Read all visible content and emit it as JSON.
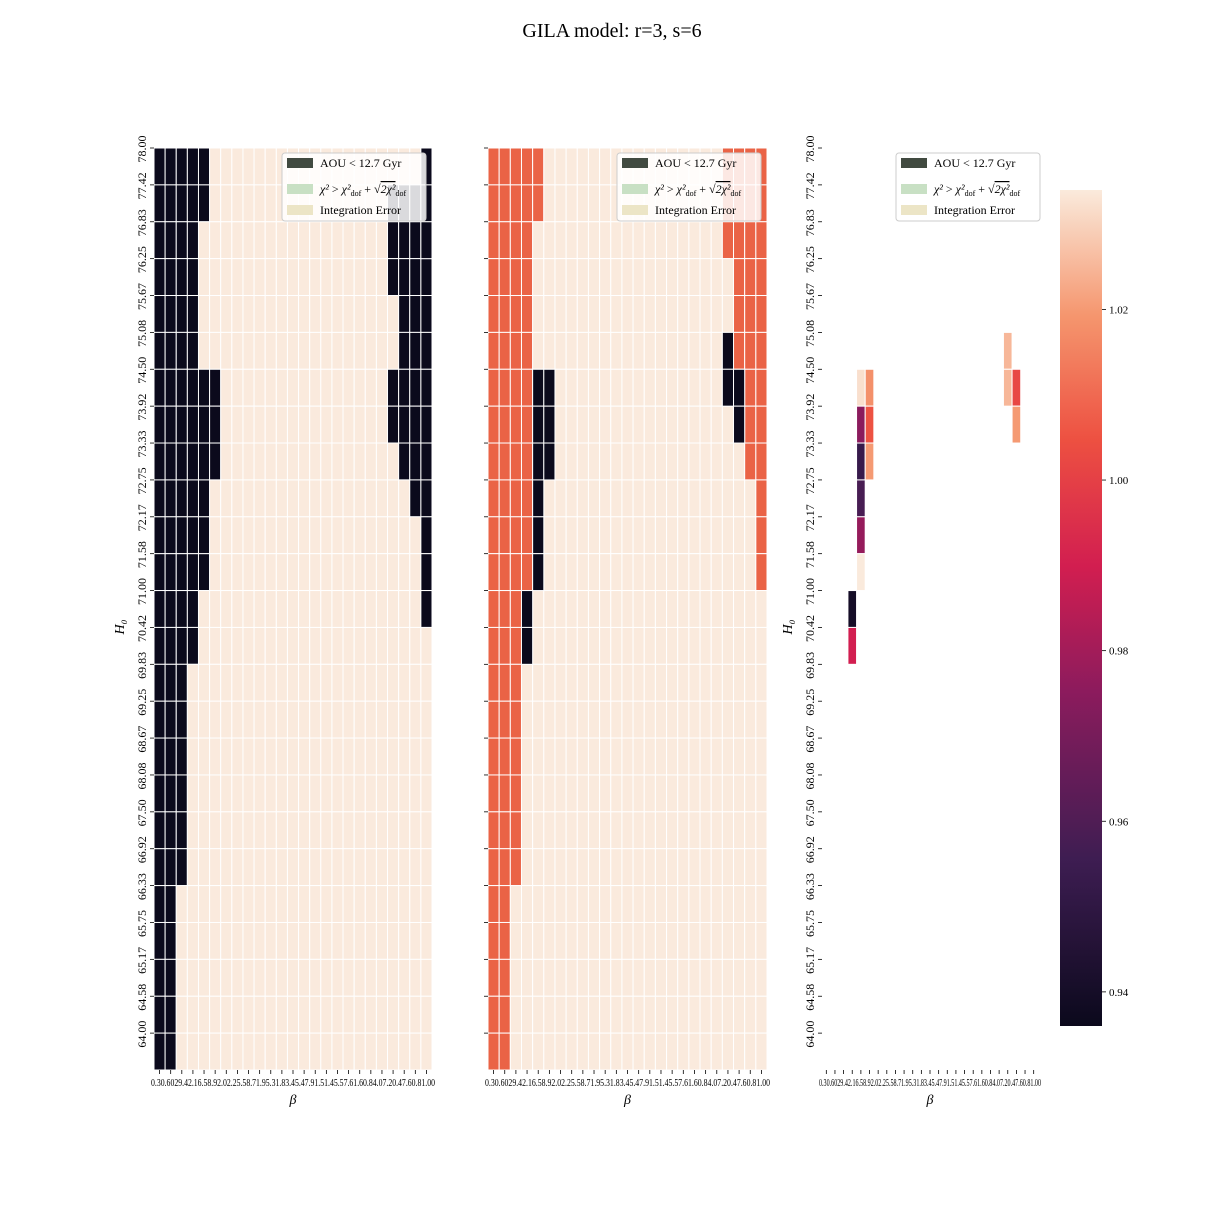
{
  "title": "GILA model: r=3, s=6",
  "colors": {
    "background_cell": "#faeadd",
    "cell_gap": "#ffffff",
    "aou": "#0b0a1c",
    "chi2": "#ea6346",
    "legend_aou": "#414a40",
    "legend_chi2": "#c8e0c4",
    "legend_integration": "#ece5c6"
  },
  "legend": {
    "aou": "AOU < 12.7 Gyr",
    "chi2_prefix": "χ²",
    "chi2_gt": " > ",
    "chi2_mid": "χ²",
    "chi2_sub": "dof",
    "chi2_plus": " + ",
    "chi2_root": "√",
    "chi2_root_arg": "2χ²",
    "integration": "Integration Error"
  },
  "chart_data": [
    {
      "type": "heatmap",
      "panel": "left",
      "xlabel": "β",
      "ylabel": "H₀",
      "y_ticks": [
        "78.00",
        "77.42",
        "76.83",
        "76.25",
        "75.67",
        "75.08",
        "74.50",
        "73.92",
        "73.33",
        "72.75",
        "72.17",
        "71.58",
        "71.00",
        "70.42",
        "69.83",
        "69.25",
        "68.67",
        "68.08",
        "67.50",
        "66.92",
        "66.33",
        "65.75",
        "65.17",
        "64.58",
        "64.00"
      ],
      "x_tick_text": "0.30.6029.42.16.58.92.02.25.58.71.95.31.83.45.47.91.51.45.57.61.60.84.07.20.47.60.81.00",
      "n_cols": 25,
      "n_rows": 25,
      "aou_left_cols_per_row": [
        5,
        5,
        4,
        4,
        4,
        4,
        6,
        6,
        6,
        5,
        5,
        5,
        4,
        4,
        3,
        3,
        3,
        3,
        3,
        3,
        2,
        2,
        2,
        2,
        2
      ],
      "aou_right_start_col_per_row": [
        25,
        21,
        21,
        21,
        22,
        22,
        21,
        21,
        22,
        23,
        24,
        24,
        24,
        26,
        26,
        26,
        26,
        26,
        26,
        26,
        26,
        26,
        26,
        26,
        26
      ],
      "aou_right_cells_extra": [
        [
          0,
          24
        ],
        [
          1,
          24
        ],
        [
          2,
          24
        ]
      ],
      "legend_position": "upper right"
    },
    {
      "type": "heatmap",
      "panel": "middle",
      "xlabel": "β",
      "y_ticks": [],
      "x_tick_text": "0.30.6029.42.16.58.92.02.25.58.71.95.31.83.45.47.91.51.45.57.61.60.84.07.20.47.60.81.00",
      "n_cols": 25,
      "n_rows": 25,
      "chi2_left_cols_per_row": [
        5,
        5,
        4,
        4,
        4,
        4,
        4,
        4,
        4,
        4,
        4,
        4,
        3,
        3,
        3,
        3,
        3,
        3,
        3,
        3,
        2,
        2,
        2,
        2,
        2
      ],
      "aou_cells": [
        [
          6,
          4
        ],
        [
          6,
          5
        ],
        [
          7,
          4
        ],
        [
          7,
          5
        ],
        [
          8,
          4
        ],
        [
          8,
          5
        ],
        [
          9,
          4
        ],
        [
          10,
          4
        ],
        [
          11,
          4
        ],
        [
          12,
          3
        ],
        [
          13,
          3
        ],
        [
          5,
          21
        ],
        [
          6,
          21
        ],
        [
          6,
          22
        ],
        [
          7,
          22
        ]
      ],
      "chi2_right_start_col_per_row": [
        21,
        21,
        21,
        22,
        22,
        22,
        22,
        23,
        23,
        24,
        24,
        24,
        26,
        26,
        26,
        26,
        26,
        26,
        26,
        26,
        26,
        26,
        26,
        26,
        26
      ],
      "legend_position": "upper right"
    },
    {
      "type": "heatmap",
      "panel": "right",
      "xlabel": "β",
      "ylabel": "H₀",
      "y_ticks": [
        "78.00",
        "77.42",
        "76.83",
        "76.25",
        "75.67",
        "75.08",
        "74.50",
        "73.92",
        "73.33",
        "72.75",
        "72.17",
        "71.58",
        "71.00",
        "70.42",
        "69.83",
        "69.25",
        "68.67",
        "68.08",
        "67.50",
        "66.92",
        "66.33",
        "65.75",
        "65.17",
        "64.58",
        "64.00"
      ],
      "x_tick_text": "0.30.6029.42.16.58.92.02.25.58.71.95.31.83.45.47.91.51.45.57.61.60.84.07.20.47.60.81.00",
      "cells": [
        {
          "row": 6,
          "col": 4,
          "value": 1.032
        },
        {
          "row": 6,
          "col": 5,
          "value": 1.018
        },
        {
          "row": 7,
          "col": 4,
          "value": 0.975
        },
        {
          "row": 7,
          "col": 5,
          "value": 1.005
        },
        {
          "row": 8,
          "col": 4,
          "value": 0.953
        },
        {
          "row": 8,
          "col": 5,
          "value": 1.02
        },
        {
          "row": 9,
          "col": 4,
          "value": 0.958
        },
        {
          "row": 10,
          "col": 4,
          "value": 0.977
        },
        {
          "row": 11,
          "col": 4,
          "value": 1.034
        },
        {
          "row": 12,
          "col": 3,
          "value": 0.94
        },
        {
          "row": 13,
          "col": 3,
          "value": 0.99
        },
        {
          "row": 5,
          "col": 21,
          "value": 1.025
        },
        {
          "row": 6,
          "col": 21,
          "value": 1.025
        },
        {
          "row": 6,
          "col": 22,
          "value": 1.002
        },
        {
          "row": 7,
          "col": 22,
          "value": 1.02
        }
      ],
      "colorbar": {
        "min": 0.936,
        "max": 1.034,
        "ticks": [
          "1.02",
          "1.00",
          "0.98",
          "0.96",
          "0.94"
        ],
        "tick_values": [
          1.02,
          1.0,
          0.98,
          0.96,
          0.94
        ]
      },
      "legend_position": "upper right"
    }
  ]
}
